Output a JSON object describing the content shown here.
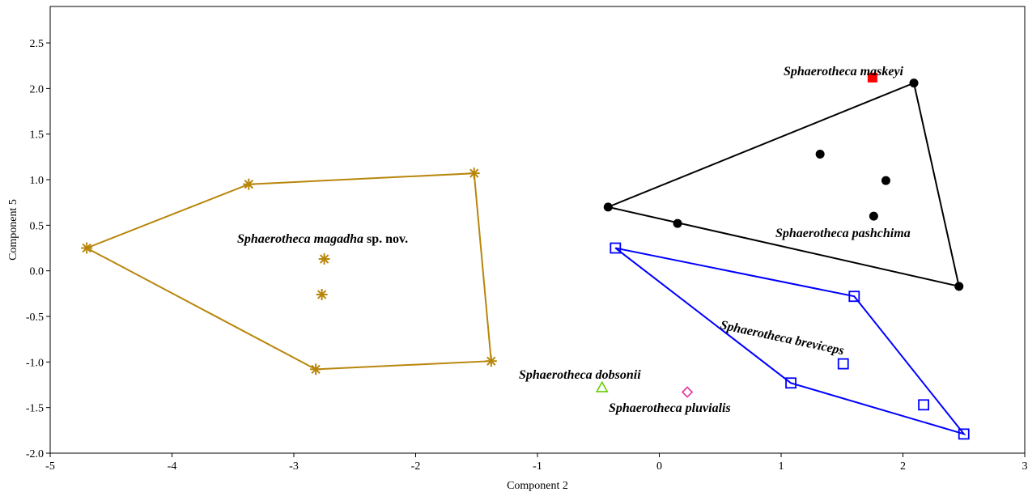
{
  "chart_data": {
    "type": "scatter",
    "xlabel": "Component 2",
    "ylabel": "Component 5",
    "xlim": [
      -5,
      3
    ],
    "ylim": [
      -2.0,
      2.9
    ],
    "x_ticks": [
      "-5",
      "-4",
      "-3",
      "-2",
      "-1",
      "0",
      "1",
      "2",
      "3"
    ],
    "y_ticks": [
      "-2.0",
      "-1.5",
      "-1.0",
      "-0.5",
      "0.0",
      "0.5",
      "1.0",
      "1.5",
      "2.0",
      "2.5"
    ],
    "grid": false,
    "legend": "none",
    "groups": [
      {
        "id": "magadha",
        "label": "Sphaerotheca magadha",
        "label_suffix": " sp. nov.",
        "marker": "asterisk",
        "color": "#B8860B",
        "points": [
          [
            -4.7,
            0.25
          ],
          [
            -3.37,
            0.95
          ],
          [
            -1.52,
            1.07
          ],
          [
            -1.38,
            -0.99
          ],
          [
            -2.82,
            -1.08
          ],
          [
            -2.75,
            0.13
          ],
          [
            -2.77,
            -0.26
          ]
        ],
        "hull": [
          [
            -4.7,
            0.25
          ],
          [
            -3.37,
            0.95
          ],
          [
            -1.52,
            1.07
          ],
          [
            -1.38,
            -0.99
          ],
          [
            -2.82,
            -1.08
          ]
        ]
      },
      {
        "id": "pashchima",
        "label": "Sphaerotheca pashchima",
        "label_suffix": "",
        "marker": "circle",
        "color": "#000000",
        "points": [
          [
            -0.42,
            0.7
          ],
          [
            2.09,
            2.06
          ],
          [
            2.46,
            -0.17
          ],
          [
            0.15,
            0.52
          ],
          [
            1.32,
            1.28
          ],
          [
            1.86,
            0.99
          ],
          [
            1.76,
            0.6
          ]
        ],
        "hull": [
          [
            -0.42,
            0.7
          ],
          [
            2.09,
            2.06
          ],
          [
            2.46,
            -0.17
          ]
        ]
      },
      {
        "id": "breviceps",
        "label": "Sphaerotheca breviceps",
        "label_suffix": "",
        "marker": "square-open",
        "color": "#0000FF",
        "points": [
          [
            -0.36,
            0.25
          ],
          [
            1.6,
            -0.28
          ],
          [
            2.5,
            -1.79
          ],
          [
            1.08,
            -1.23
          ],
          [
            1.51,
            -1.02
          ],
          [
            2.17,
            -1.47
          ]
        ],
        "hull": [
          [
            -0.36,
            0.25
          ],
          [
            1.6,
            -0.28
          ],
          [
            2.5,
            -1.79
          ],
          [
            1.08,
            -1.23
          ]
        ]
      },
      {
        "id": "maskeyi",
        "label": "Sphaerotheca maskeyi",
        "label_suffix": "",
        "marker": "square-filled",
        "color": "#FF0000",
        "points": [
          [
            1.75,
            2.12
          ]
        ],
        "hull": []
      },
      {
        "id": "dobsonii",
        "label": "Sphaerotheca dobsonii",
        "label_suffix": "",
        "marker": "triangle-open",
        "color": "#66CC00",
        "points": [
          [
            -0.47,
            -1.28
          ]
        ],
        "hull": []
      },
      {
        "id": "pluvialis",
        "label": "Sphaerotheca pluvialis",
        "label_suffix": "",
        "marker": "diamond-open",
        "color": "#E0309A",
        "points": [
          [
            0.23,
            -1.33
          ]
        ],
        "hull": []
      }
    ]
  }
}
